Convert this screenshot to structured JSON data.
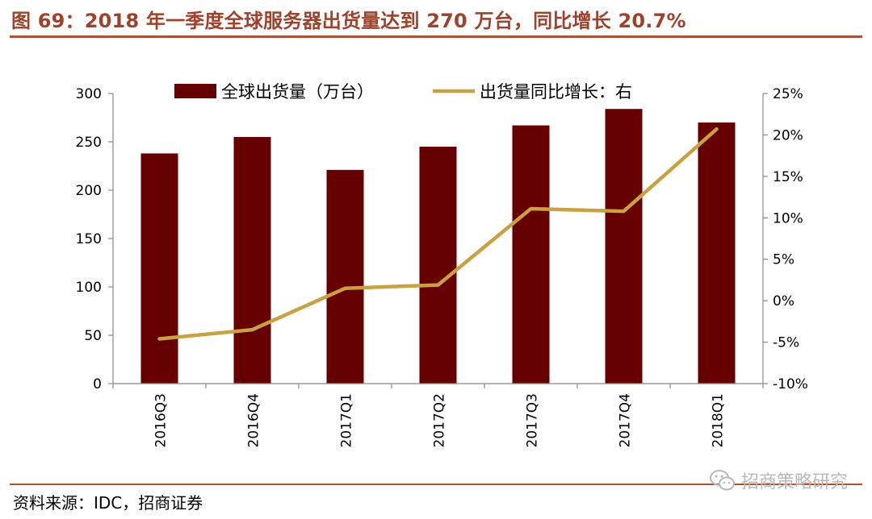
{
  "header": {
    "title": "图 69：2018 年一季度全球服务器出货量达到 270 万台，同比增长 20.7%"
  },
  "footer": {
    "source": "资料来源：IDC，招商证券",
    "watermark": "招商策略研究",
    "watermark_icon": "wechat-icon"
  },
  "colors": {
    "bar": "#660000",
    "line": "#c9a23f",
    "rule": "#b2502f",
    "title": "#a0422a"
  },
  "chart_data": {
    "type": "bar",
    "categories": [
      "2016Q3",
      "2016Q4",
      "2017Q1",
      "2017Q2",
      "2017Q3",
      "2017Q4",
      "2018Q1"
    ],
    "series": [
      {
        "name": "全球出货量（万台）",
        "type": "bar",
        "axis": "left",
        "values": [
          238,
          255,
          221,
          245,
          267,
          284,
          270
        ]
      },
      {
        "name": "出货量同比增长：右",
        "type": "line",
        "axis": "right",
        "values": [
          -4.6,
          -3.5,
          1.5,
          1.9,
          11.1,
          10.8,
          20.7
        ]
      }
    ],
    "y_left": {
      "lim": [
        0,
        300
      ],
      "ticks": [
        0,
        50,
        100,
        150,
        200,
        250,
        300
      ],
      "tick_labels": [
        "0",
        "50",
        "100",
        "150",
        "200",
        "250",
        "300"
      ]
    },
    "y_right": {
      "lim": [
        -10,
        25
      ],
      "ticks": [
        -10,
        -5,
        0,
        5,
        10,
        15,
        20,
        25
      ],
      "tick_labels": [
        "-10%",
        "-5%",
        "0%",
        "5%",
        "10%",
        "15%",
        "20%",
        "25%"
      ]
    },
    "legend_position": "top-center",
    "grid": false
  }
}
